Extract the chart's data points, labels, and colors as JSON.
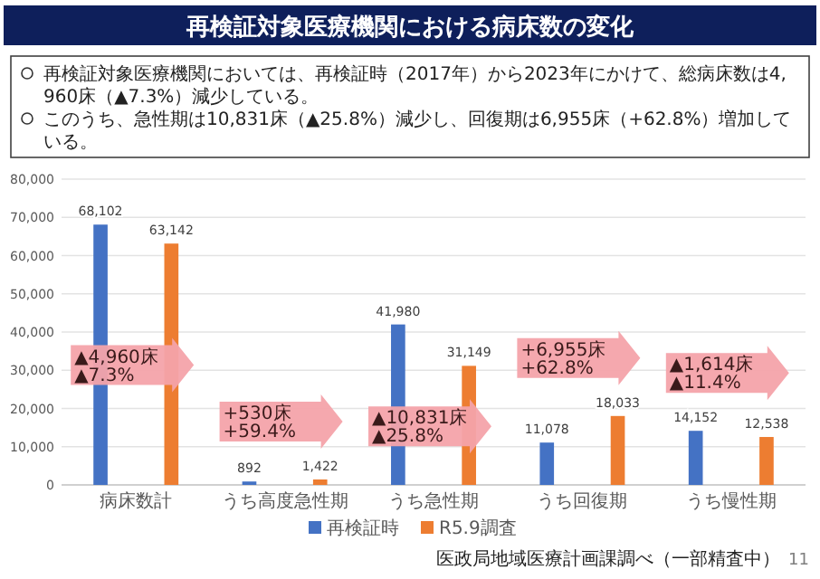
{
  "chart_data": {
    "type": "bar",
    "title": "再検証対象医療機関における病床数の変化",
    "categories": [
      "病床数計",
      "うち高度急性期",
      "うち急性期",
      "うち回復期",
      "うち慢性期"
    ],
    "series": [
      {
        "name": "再検証時",
        "color": "#4472c4",
        "values": [
          68102,
          892,
          41980,
          11078,
          14152
        ]
      },
      {
        "name": "R5.9調査",
        "color": "#ed7d31",
        "values": [
          63142,
          1422,
          31149,
          18033,
          12538
        ]
      }
    ],
    "ylim": [
      0,
      80000
    ],
    "yticks": [
      {
        "value": 0,
        "label": "0"
      },
      {
        "value": 10000,
        "label": "10,000"
      },
      {
        "value": 20000,
        "label": "20,000"
      },
      {
        "value": 30000,
        "label": "30,000"
      },
      {
        "value": 40000,
        "label": "40,000"
      },
      {
        "value": 50000,
        "label": "50,000"
      },
      {
        "value": 60000,
        "label": "60,000"
      },
      {
        "value": 70000,
        "label": "70,000"
      },
      {
        "value": 80000,
        "label": "80,000"
      }
    ],
    "grid": "y",
    "legend": "bottom",
    "value_labels": [
      [
        "68,102",
        "892",
        "41,980",
        "11,078",
        "14,152"
      ],
      [
        "63,142",
        "1,422",
        "31,149",
        "18,033",
        "12,538"
      ]
    ],
    "annotations": [
      "再検証対象医療機関においては、再検証時（2017年）から2023年にかけて、総病床数は4,960床（▲7.3%）減少している。",
      "このうち、急性期は10,831床（▲25.8%）減少し、回復期は6,955床（+62.8%）増加している。",
      "▲4,960床\n▲7.3%",
      "+530床\n+59.4%",
      "▲10,831床\n▲25.8%",
      "+6,955床\n+62.8%",
      "▲1,614床\n▲11.4%",
      "医政局地域医療計画課調べ（一部精査中）",
      "11"
    ]
  }
}
